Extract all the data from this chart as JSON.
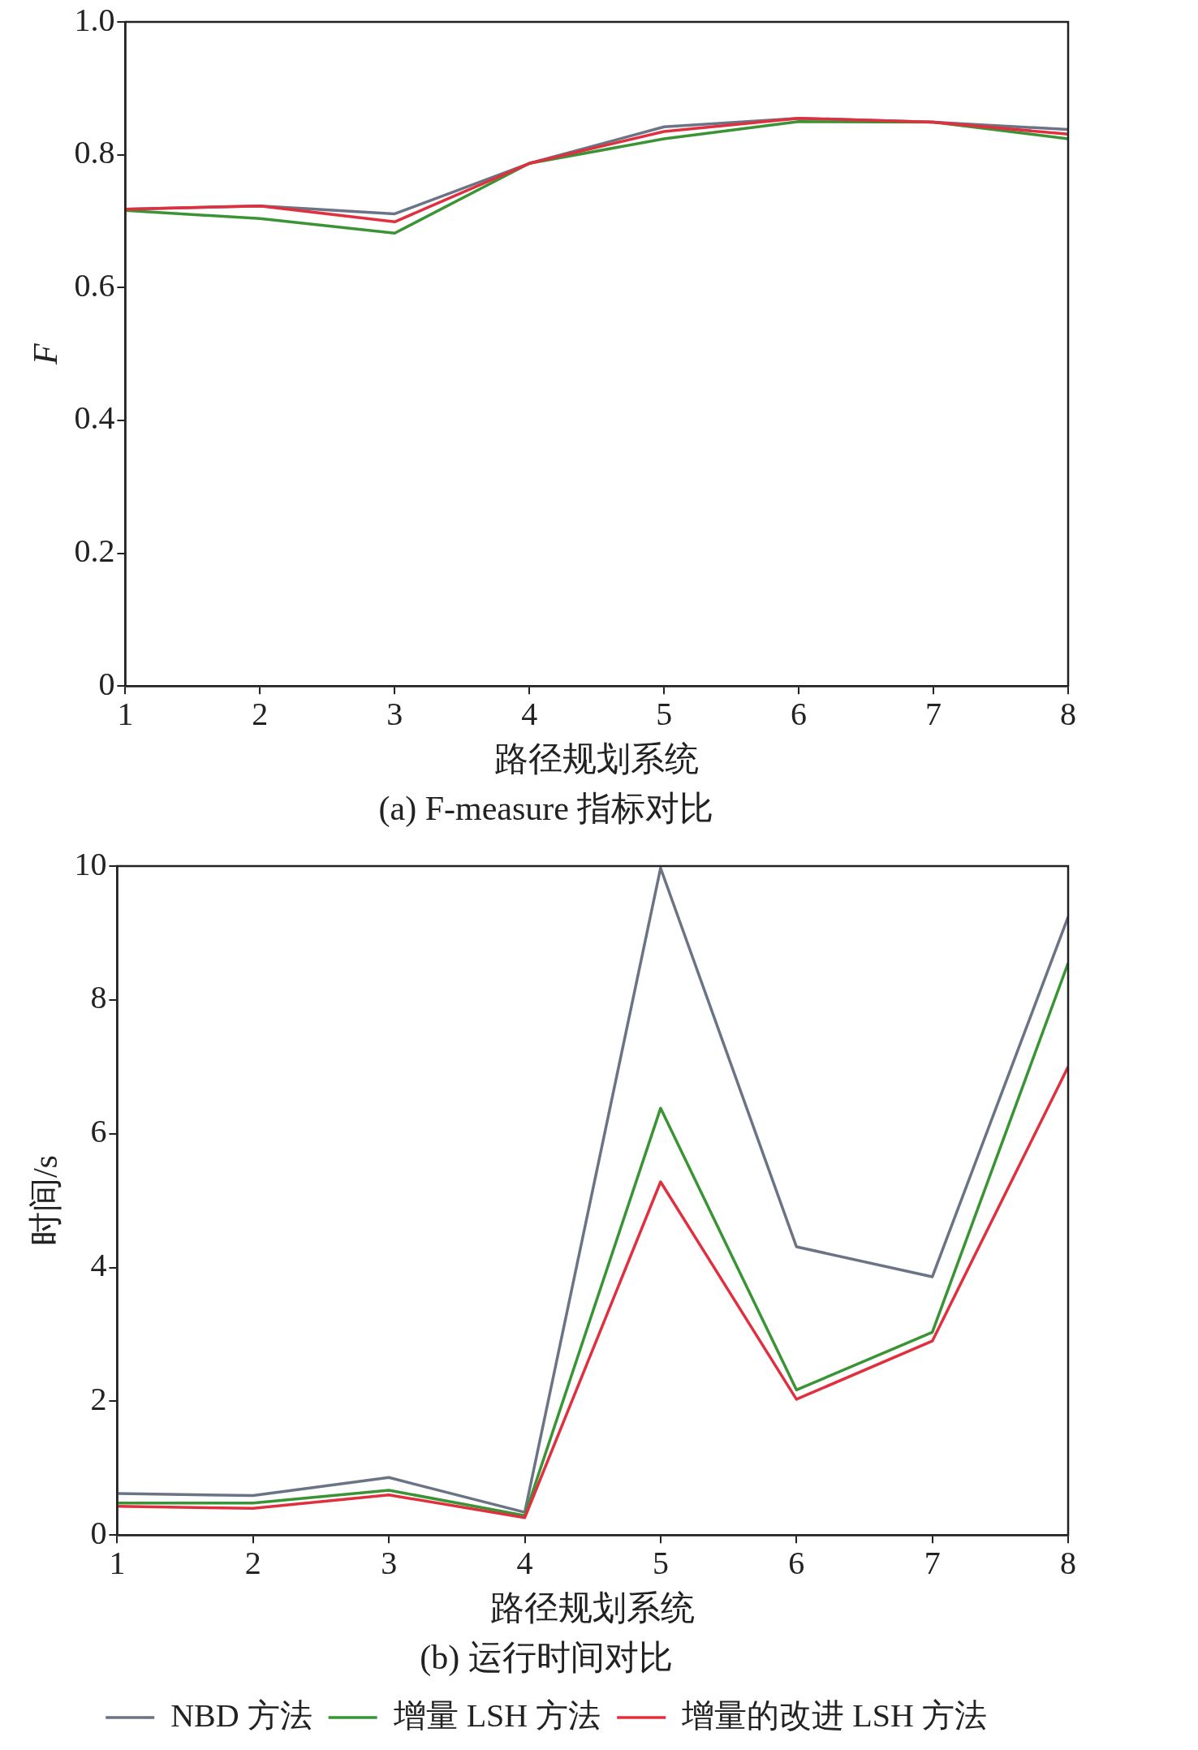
{
  "chart_data": [
    {
      "type": "line",
      "title": "(a) F-measure 指标对比",
      "xlabel": "路径规划系统",
      "ylabel": "F",
      "x": [
        1,
        2,
        3,
        4,
        5,
        6,
        7,
        8
      ],
      "xlim": [
        1,
        8
      ],
      "xticks": [
        1,
        2,
        3,
        4,
        5,
        6,
        7,
        8
      ],
      "ylim": [
        0,
        1
      ],
      "yticks": [
        0,
        0.2,
        0.4,
        0.6,
        0.8,
        {
          "value": 1,
          "label": "1.0"
        }
      ],
      "grid": false,
      "legend": false,
      "marker": "none",
      "line_style": "solid",
      "series": [
        {
          "color": "#6b7485",
          "values": [
            0.718,
            0.723,
            0.711,
            0.787,
            0.842,
            0.855,
            0.849,
            0.838
          ]
        },
        {
          "color": "#3a9435",
          "values": [
            0.716,
            0.704,
            0.682,
            0.787,
            0.824,
            0.85,
            0.849,
            0.824
          ]
        },
        {
          "color": "#e0303f",
          "values": [
            0.718,
            0.723,
            0.699,
            0.787,
            0.835,
            0.855,
            0.849,
            0.831
          ]
        }
      ]
    },
    {
      "type": "line",
      "title": "(b) 运行时间对比",
      "xlabel": "路径规划系统",
      "ylabel": "时间/s",
      "x": [
        1,
        2,
        3,
        4,
        5,
        6,
        7,
        8
      ],
      "xlim": [
        1,
        8
      ],
      "xticks": [
        1,
        2,
        3,
        4,
        5,
        6,
        7,
        8
      ],
      "ylim": [
        0,
        10
      ],
      "yticks": [
        0,
        2,
        4,
        6,
        8,
        10
      ],
      "grid": false,
      "legend": "bottom",
      "marker": "none",
      "line_style": "solid",
      "series": [
        {
          "name": "NBD 方法",
          "color": "#6b7485",
          "values": [
            0.62,
            0.59,
            0.86,
            0.34,
            9.97,
            4.31,
            3.86,
            9.24
          ]
        },
        {
          "name": "增量 LSH 方法",
          "color": "#3a9435",
          "values": [
            0.48,
            0.48,
            0.67,
            0.29,
            6.38,
            2.17,
            3.03,
            8.55
          ]
        },
        {
          "name": "增量的改进 LSH 方法",
          "color": "#e0303f",
          "values": [
            0.43,
            0.4,
            0.6,
            0.26,
            5.28,
            2.03,
            2.9,
            7.0
          ]
        }
      ]
    }
  ]
}
